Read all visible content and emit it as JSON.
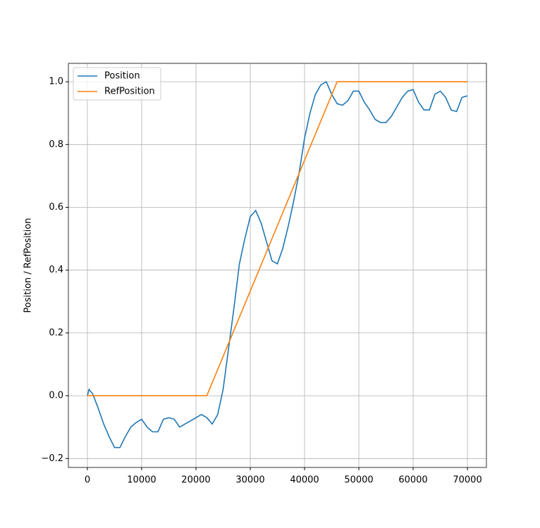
{
  "chart_data": {
    "type": "line",
    "ylabel": "Position / RefPosition",
    "xlim": [
      -3500,
      73500
    ],
    "ylim": [
      -0.2285,
      1.0585
    ],
    "xticks": [
      0,
      10000,
      20000,
      30000,
      40000,
      50000,
      60000,
      70000
    ],
    "yticks": [
      {
        "value": -0.2,
        "label": "−0.2"
      },
      {
        "value": 0,
        "label": "0.0"
      },
      {
        "value": 0.2,
        "label": "0.2"
      },
      {
        "value": 0.4,
        "label": "0.4"
      },
      {
        "value": 0.6,
        "label": "0.6"
      },
      {
        "value": 0.8,
        "label": "0.8"
      },
      {
        "value": 1,
        "label": "1.0"
      }
    ],
    "grid": true,
    "legend": "upper-left",
    "series": [
      {
        "name": "Position",
        "color": "#1f77b4",
        "x": [
          0,
          300,
          1000,
          2000,
          3000,
          4000,
          5000,
          6000,
          7000,
          8000,
          9000,
          10000,
          11000,
          12000,
          13000,
          14000,
          15000,
          16000,
          17000,
          18000,
          19000,
          20000,
          21000,
          22000,
          23000,
          24000,
          25000,
          26000,
          27000,
          28000,
          29000,
          30000,
          31000,
          32000,
          33000,
          34000,
          35000,
          36000,
          37000,
          38000,
          39000,
          40000,
          41000,
          42000,
          43000,
          44000,
          45000,
          46000,
          47000,
          48000,
          49000,
          50000,
          51000,
          52000,
          53000,
          54000,
          55000,
          56000,
          57000,
          58000,
          59000,
          60000,
          61000,
          62000,
          63000,
          64000,
          65000,
          66000,
          67000,
          68000,
          69000,
          70000
        ],
        "values": [
          0,
          0.02,
          0.005,
          -0.04,
          -0.09,
          -0.13,
          -0.165,
          -0.165,
          -0.13,
          -0.1,
          -0.085,
          -0.075,
          -0.1,
          -0.115,
          -0.115,
          -0.075,
          -0.07,
          -0.075,
          -0.1,
          -0.09,
          -0.08,
          -0.07,
          -0.06,
          -0.07,
          -0.09,
          -0.06,
          0.02,
          0.15,
          0.28,
          0.42,
          0.5,
          0.57,
          0.59,
          0.55,
          0.49,
          0.43,
          0.42,
          0.47,
          0.54,
          0.62,
          0.71,
          0.82,
          0.9,
          0.96,
          0.99,
          1.0,
          0.96,
          0.93,
          0.925,
          0.94,
          0.97,
          0.97,
          0.935,
          0.91,
          0.88,
          0.87,
          0.87,
          0.89,
          0.92,
          0.95,
          0.97,
          0.975,
          0.935,
          0.91,
          0.91,
          0.96,
          0.97,
          0.95,
          0.91,
          0.905,
          0.95,
          0.955
        ]
      },
      {
        "name": "RefPosition",
        "color": "#ff7f0e",
        "x": [
          0,
          22000,
          46000,
          70000
        ],
        "values": [
          0,
          0,
          1,
          1
        ]
      }
    ]
  }
}
